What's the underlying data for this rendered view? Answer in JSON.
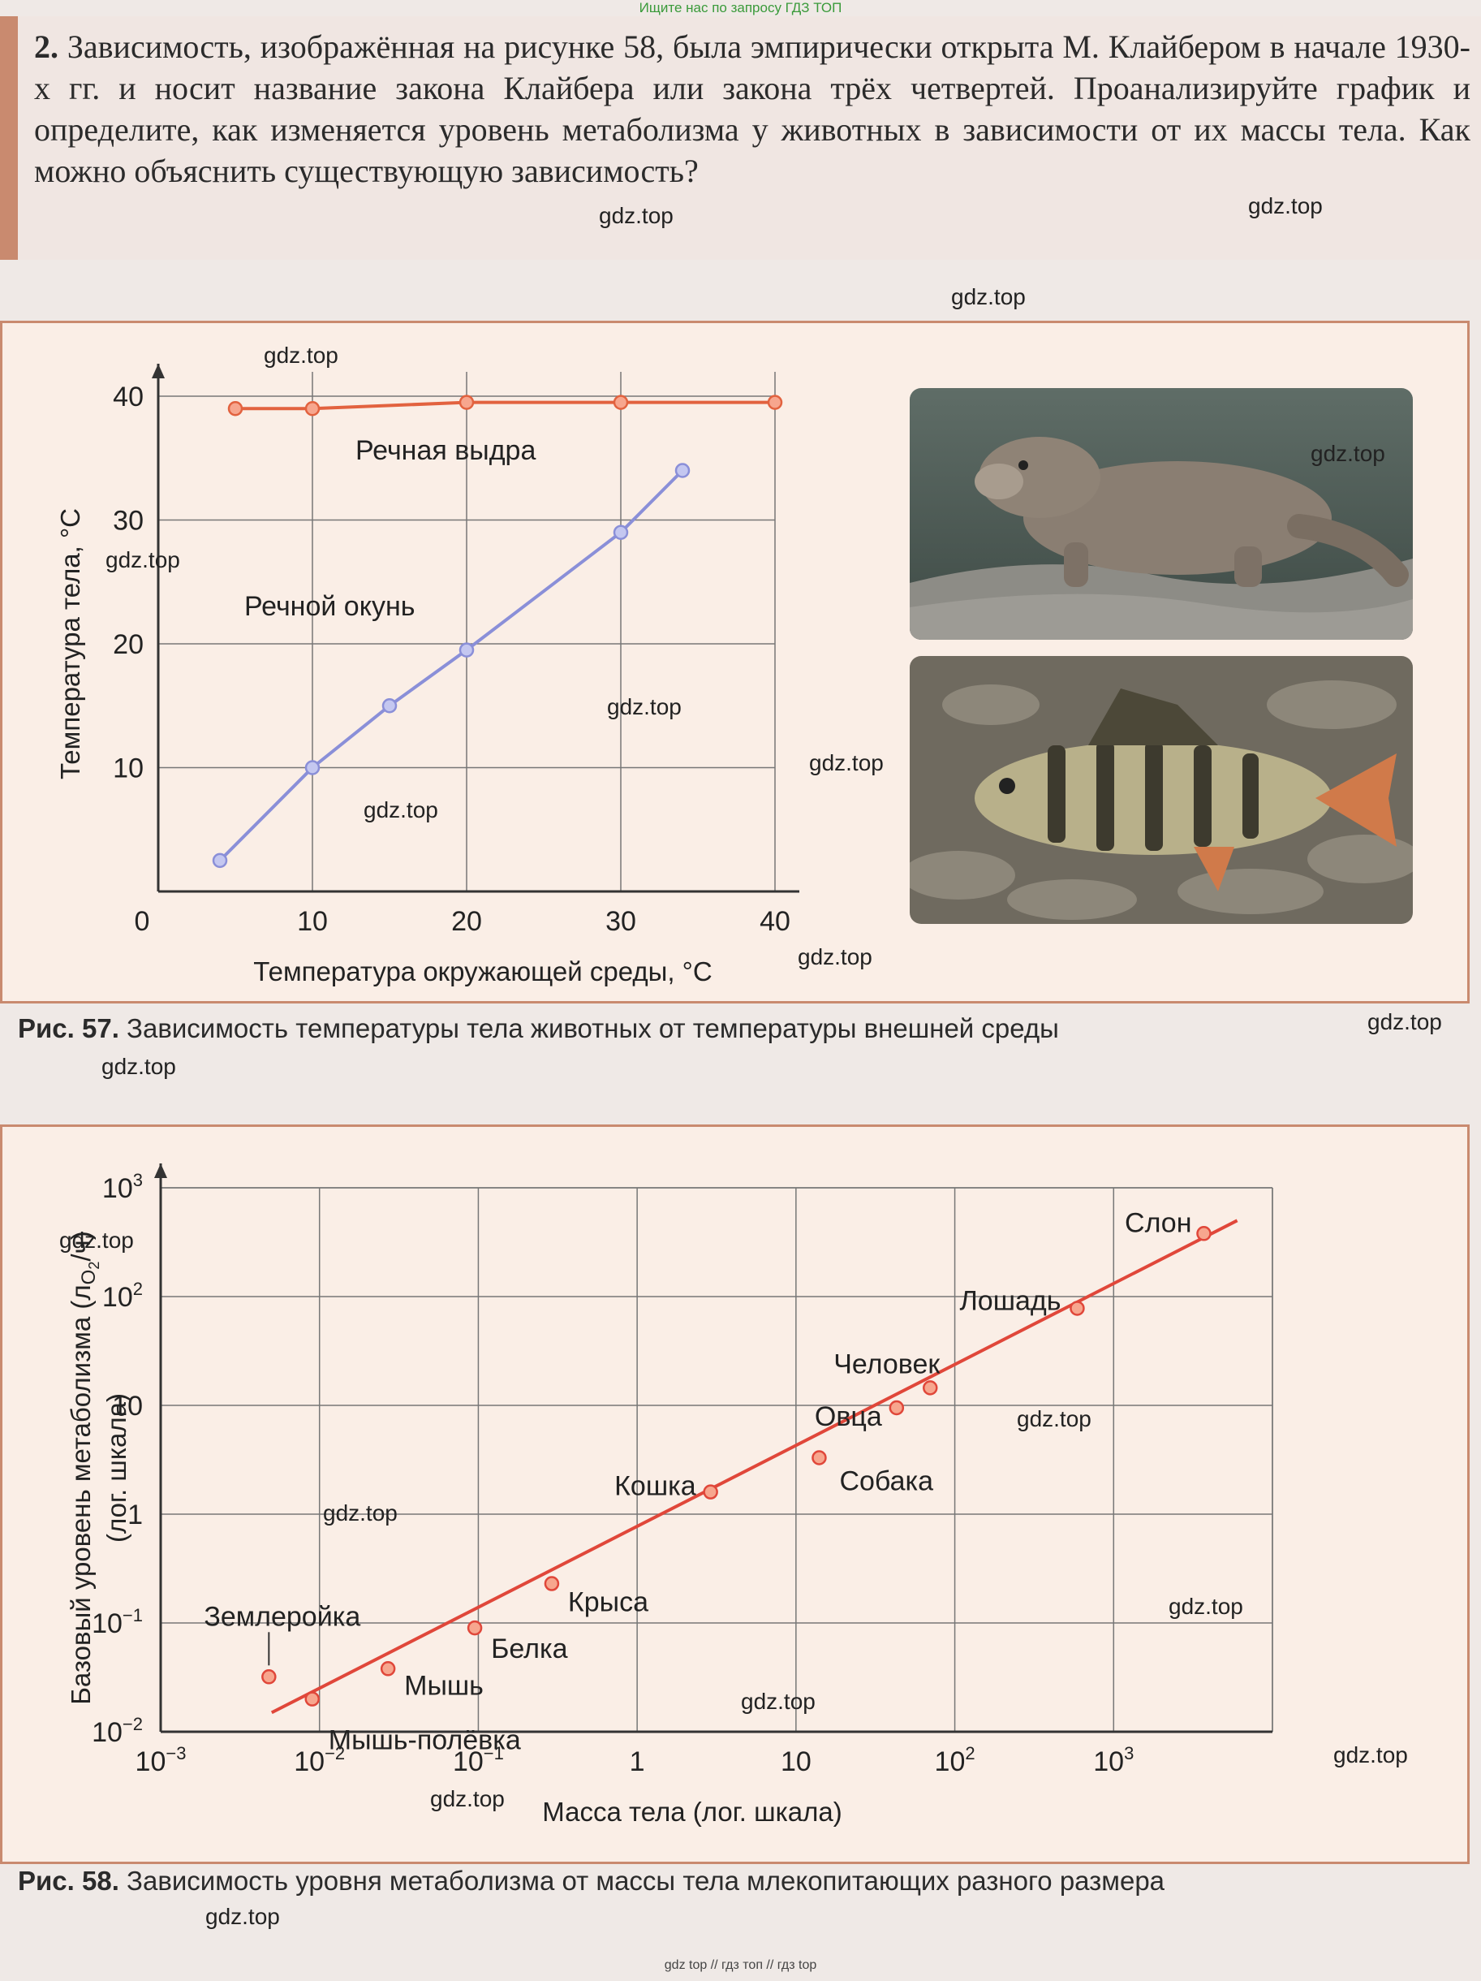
{
  "header_note": "Ищите нас по запросу ГДЗ ТОП",
  "task": {
    "number": "2.",
    "text": "Зависимость, изображённая на рисунке 58, была эмпирически открыта М. Клайбером в начале 1930-х гг. и носит название закона Клайбера или закона трёх четвертей. Проанализируйте график и определите, как изменяется уровень метаболизма у животных в зависимости от их массы тела. Как можно объяснить существующую зависимость?"
  },
  "fig57": {
    "caption_num": "Рис. 57.",
    "caption_text": "Зависимость температуры тела животных от температуры внешней среды",
    "chart_data": {
      "type": "line",
      "xlabel": "Температура окружающей среды, °C",
      "ylabel": "Температура тела, °C",
      "xlim": [
        0,
        40
      ],
      "ylim": [
        0,
        40
      ],
      "x_ticks": [
        "0",
        "10",
        "20",
        "30",
        "40"
      ],
      "y_ticks": [
        "10",
        "20",
        "30",
        "40"
      ],
      "grid": true,
      "series": [
        {
          "name": "Речная выдра",
          "color": "#e2623f",
          "points": [
            [
              5,
              39
            ],
            [
              10,
              39
            ],
            [
              20,
              39.5
            ],
            [
              30,
              39.5
            ],
            [
              40,
              39.5
            ]
          ]
        },
        {
          "name": "Речной окунь",
          "color": "#8a8fd8",
          "points": [
            [
              4,
              2.5
            ],
            [
              10,
              10
            ],
            [
              15,
              15
            ],
            [
              20,
              19.5
            ],
            [
              30,
              29
            ],
            [
              34,
              34
            ]
          ]
        }
      ]
    },
    "photo_labels": [
      "otter-photo",
      "perch-photo"
    ]
  },
  "fig58": {
    "caption_num": "Рис. 58.",
    "caption_text": "Зависимость уровня метаболизма от массы тела млекопитающих разного размера",
    "chart_data": {
      "type": "scatter",
      "xlabel": "Масса тела (лог. шкала)",
      "ylabel_line1": "Базовый уровень метаболизма (л",
      "ylabel_sub": "О",
      "ylabel_sub2": "2",
      "ylabel_line1_end": "/ч)",
      "ylabel_line2": "(лог. шкала)",
      "x_scale": "log",
      "y_scale": "log",
      "xlim": [
        0.001,
        10000
      ],
      "ylim": [
        0.01,
        1000
      ],
      "x_ticks": [
        {
          "base": "10",
          "exp": "−3"
        },
        {
          "base": "10",
          "exp": "−2"
        },
        {
          "base": "10",
          "exp": "−1"
        },
        {
          "base": "1",
          "exp": ""
        },
        {
          "base": "10",
          "exp": ""
        },
        {
          "base": "10",
          "exp": "2"
        },
        {
          "base": "10",
          "exp": "3"
        }
      ],
      "y_ticks": [
        {
          "base": "10",
          "exp": "−2"
        },
        {
          "base": "10",
          "exp": "−1"
        },
        {
          "base": "1",
          "exp": ""
        },
        {
          "base": "10",
          "exp": ""
        },
        {
          "base": "10",
          "exp": "2"
        },
        {
          "base": "10",
          "exp": "3"
        }
      ],
      "grid": true,
      "points": [
        {
          "label": "Землеройка",
          "x": 0.0048,
          "y": 0.032
        },
        {
          "label": "Мышь-полёвка",
          "x": 0.009,
          "y": 0.02
        },
        {
          "label": "Мышь",
          "x": 0.027,
          "y": 0.038
        },
        {
          "label": "Белка",
          "x": 0.095,
          "y": 0.09
        },
        {
          "label": "Крыса",
          "x": 0.29,
          "y": 0.23
        },
        {
          "label": "Кошка",
          "x": 2.9,
          "y": 1.6
        },
        {
          "label": "Собака",
          "x": 14,
          "y": 3.3
        },
        {
          "label": "Овца",
          "x": 43,
          "y": 9.5
        },
        {
          "label": "Человек",
          "x": 70,
          "y": 14.5
        },
        {
          "label": "Лошадь",
          "x": 590,
          "y": 78
        },
        {
          "label": "Слон",
          "x": 3700,
          "y": 380
        }
      ],
      "fit_line": {
        "x": [
          0.005,
          6000
        ],
        "y": [
          0.015,
          500
        ]
      }
    }
  },
  "watermarks": [
    "gdz.top",
    "gdz.top",
    "gdz.top",
    "gdz.top",
    "gdz.top",
    "gdz.top",
    "gdz.top",
    "gdz.top",
    "gdz.top",
    "gdz.top",
    "gdz.top",
    "gdz.top",
    "gdz.top",
    "gdz.top",
    "gdz.top",
    "gdz.top",
    "gdz.top",
    "gdz.top",
    "gdz.top"
  ],
  "footer_note": "gdz top // гдз топ // гдз top",
  "colors": {
    "accent": "#c98a6f",
    "orange_line": "#e2623f",
    "blue_line": "#8a8fd8",
    "red_fit": "#e0473a"
  }
}
